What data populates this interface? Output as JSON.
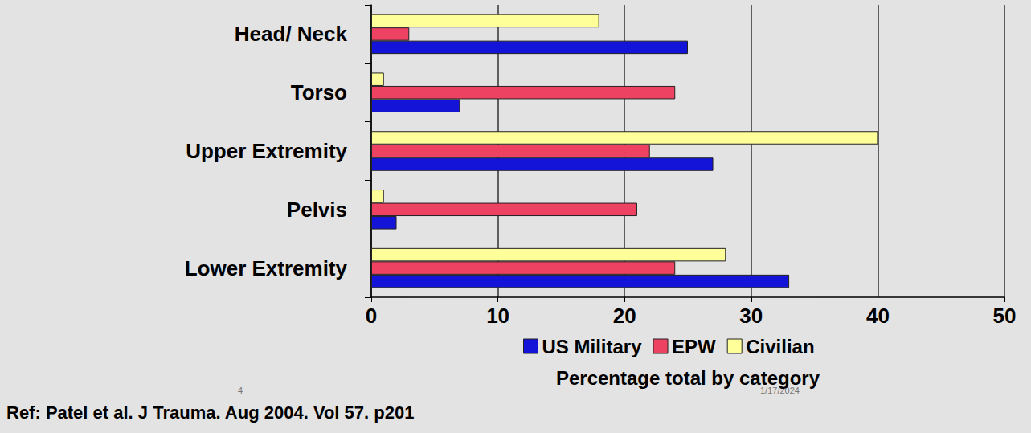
{
  "chart_data": {
    "type": "bar",
    "orientation": "horizontal",
    "categories": [
      "Head/ Neck",
      "Torso",
      "Upper Extremity",
      "Pelvis",
      "Lower Extremity"
    ],
    "series": [
      {
        "name": "US Military",
        "color": "#1414d8",
        "values": [
          25,
          7,
          27,
          2,
          33
        ]
      },
      {
        "name": "EPW",
        "color": "#ee4262",
        "values": [
          3,
          24,
          22,
          21,
          24
        ]
      },
      {
        "name": "Civilian",
        "color": "#ffff9a",
        "values": [
          18,
          1,
          40,
          1,
          28
        ]
      }
    ],
    "x_label": "Percentage total by category",
    "xlim": [
      0,
      50
    ],
    "xticks": [
      0,
      10,
      20,
      30,
      40,
      50
    ],
    "grid": true,
    "legend": "bottom",
    "annotations": [
      "4",
      "1/17/2024",
      "Ref: Patel et al. J Trauma. Aug 2004. Vol 57. p201"
    ]
  }
}
